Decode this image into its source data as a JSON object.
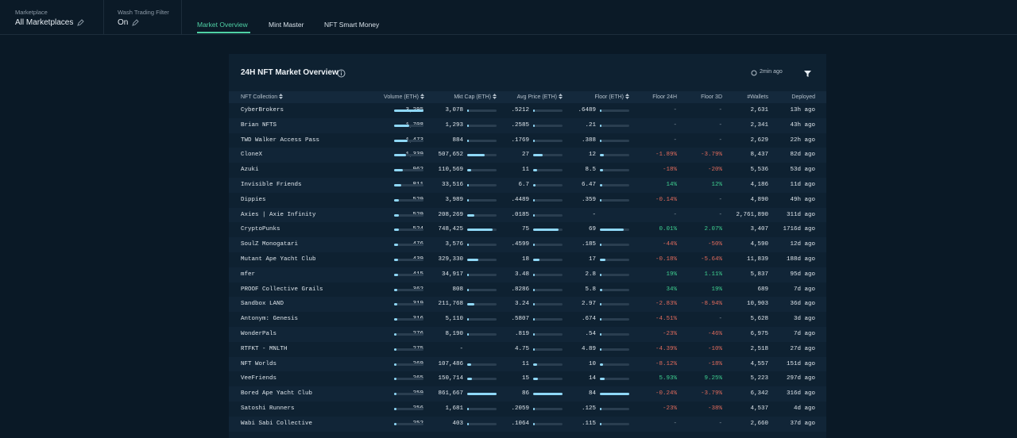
{
  "header": {
    "filters": [
      {
        "label": "Marketplace",
        "value": "All Marketplaces"
      },
      {
        "label": "Wash Trading Filter",
        "value": "On"
      }
    ],
    "tabs": [
      "Market Overview",
      "Mint Master",
      "NFT Smart Money"
    ]
  },
  "panel": {
    "title": "24H NFT Market Overview",
    "updated": "2min ago"
  },
  "table": {
    "columns": [
      "NFT Collection",
      "Volume (ETH)",
      "Mkt Cap (ETH)",
      "Avg Price (ETH)",
      "Floor (ETH)",
      "Floor 24H",
      "Floor 3D",
      "#Wallets",
      "Deployed"
    ],
    "rows": [
      [
        "CyberBrokers",
        "3,295",
        "3,078",
        ".5212",
        ".6489",
        "-",
        "-",
        "2,631",
        "13h ago"
      ],
      [
        "Brian NFTS",
        "1,708",
        "1,293",
        ".2585",
        ".21",
        "-",
        "-",
        "2,341",
        "43h ago"
      ],
      [
        "TWD Walker Access Pass",
        "1,473",
        "884",
        ".1769",
        ".388",
        "-",
        "-",
        "2,629",
        "22h ago"
      ],
      [
        "CloneX",
        "1,339",
        "507,652",
        "27",
        "12",
        "-1.89%",
        "-3.79%",
        "8,437",
        "82d ago"
      ],
      [
        "Azuki",
        "962",
        "110,569",
        "11",
        "8.5",
        "-18%",
        "-20%",
        "5,536",
        "53d ago"
      ],
      [
        "Invisible Friends",
        "811",
        "33,516",
        "6.7",
        "6.47",
        "14%",
        "12%",
        "4,186",
        "11d ago"
      ],
      [
        "Dippies",
        "529",
        "3,989",
        ".4489",
        ".359",
        "-0.14%",
        "-",
        "4,890",
        "49h ago"
      ],
      [
        "Axies | Axie Infinity",
        "529",
        "208,269",
        ".0185",
        "-",
        "-",
        "-",
        "2,761,890",
        "311d ago"
      ],
      [
        "CryptoPunks",
        "524",
        "748,425",
        "75",
        "69",
        "0.01%",
        "2.07%",
        "3,407",
        "1716d ago"
      ],
      [
        "SoulZ Monogatari",
        "476",
        "3,576",
        ".4599",
        ".185",
        "-44%",
        "-50%",
        "4,590",
        "12d ago"
      ],
      [
        "Mutant Ape Yacht Club",
        "439",
        "329,330",
        "18",
        "17",
        "-0.18%",
        "-5.64%",
        "11,839",
        "188d ago"
      ],
      [
        "mfer",
        "415",
        "34,917",
        "3.48",
        "2.8",
        "19%",
        "1.11%",
        "5,837",
        "95d ago"
      ],
      [
        "PROOF Collective Grails",
        "362",
        "808",
        ".8286",
        "5.8",
        "34%",
        "19%",
        "689",
        "7d ago"
      ],
      [
        "Sandbox LAND",
        "319",
        "211,768",
        "3.24",
        "2.97",
        "-2.83%",
        "-8.94%",
        "10,903",
        "36d ago"
      ],
      [
        "Antonym: Genesis",
        "316",
        "5,110",
        ".5807",
        ".674",
        "-4.51%",
        "-",
        "5,628",
        "3d ago"
      ],
      [
        "WonderPals",
        "276",
        "8,190",
        ".819",
        ".54",
        "-23%",
        "-46%",
        "6,975",
        "7d ago"
      ],
      [
        "RTFKT - MNLTH",
        "275",
        "-",
        "4.75",
        "4.89",
        "-4.39%",
        "-10%",
        "2,518",
        "27d ago"
      ],
      [
        "NFT Worlds",
        "269",
        "107,486",
        "11",
        "10",
        "-8.12%",
        "-18%",
        "4,557",
        "151d ago"
      ],
      [
        "VeeFriends",
        "265",
        "150,714",
        "15",
        "14",
        "5.93%",
        "9.25%",
        "5,223",
        "297d ago"
      ],
      [
        "Bored Ape Yacht Club",
        "259",
        "861,667",
        "86",
        "84",
        "-0.24%",
        "-3.79%",
        "6,342",
        "316d ago"
      ],
      [
        "Satoshi Runners",
        "256",
        "1,681",
        ".2059",
        ".125",
        "-23%",
        "-38%",
        "4,537",
        "4d ago"
      ],
      [
        "Wabi Sabi Collective",
        "252",
        "403",
        ".1064",
        ".115",
        "-",
        "-",
        "2,660",
        "37d ago"
      ]
    ]
  }
}
